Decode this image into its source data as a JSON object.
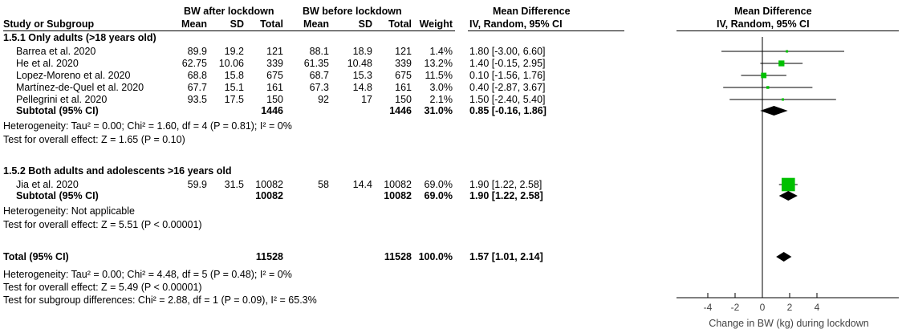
{
  "header": {
    "group_after": "BW after lockdown",
    "group_before": "BW before lockdown",
    "md_title": "Mean Difference",
    "plot_title": "Mean Difference",
    "study_col": "Study or Subgroup",
    "mean": "Mean",
    "sd": "SD",
    "total": "Total",
    "weight": "Weight",
    "md_method": "IV, Random, 95% CI",
    "plot_method": "IV, Random, 95% CI"
  },
  "subgroup1": {
    "title": "1.5.1 Only adults (>18 years old)",
    "rows": [
      {
        "study": "Barrea et al. 2020",
        "mean_a": "89.9",
        "sd_a": "19.2",
        "n_a": "121",
        "mean_b": "88.1",
        "sd_b": "18.9",
        "n_b": "121",
        "weight": "1.4%",
        "ci": "1.80 [-3.00, 6.60]"
      },
      {
        "study": "He et al. 2020",
        "mean_a": "62.75",
        "sd_a": "10.06",
        "n_a": "339",
        "mean_b": "61.35",
        "sd_b": "10.48",
        "n_b": "339",
        "weight": "13.2%",
        "ci": "1.40 [-0.15, 2.95]"
      },
      {
        "study": "Lopez-Moreno et al. 2020",
        "mean_a": "68.8",
        "sd_a": "15.8",
        "n_a": "675",
        "mean_b": "68.7",
        "sd_b": "15.3",
        "n_b": "675",
        "weight": "11.5%",
        "ci": "0.10 [-1.56, 1.76]"
      },
      {
        "study": "Martínez-de-Quel et al. 2020",
        "mean_a": "67.7",
        "sd_a": "15.1",
        "n_a": "161",
        "mean_b": "67.3",
        "sd_b": "14.8",
        "n_b": "161",
        "weight": "3.0%",
        "ci": "0.40 [-2.87, 3.67]"
      },
      {
        "study": "Pellegrini et al. 2020",
        "mean_a": "93.5",
        "sd_a": "17.5",
        "n_a": "150",
        "mean_b": "92",
        "sd_b": "17",
        "n_b": "150",
        "weight": "2.1%",
        "ci": "1.50 [-2.40, 5.40]"
      }
    ],
    "subtotal": {
      "label": "Subtotal (95% CI)",
      "n_a": "1446",
      "n_b": "1446",
      "weight": "31.0%",
      "ci": "0.85 [-0.16, 1.86]"
    },
    "heterogeneity": "Heterogeneity: Tau² = 0.00; Chi² = 1.60, df = 4 (P = 0.81); I² = 0%",
    "overall": "Test for overall effect: Z = 1.65 (P = 0.10)"
  },
  "subgroup2": {
    "title": "1.5.2 Both adults and adolescents >16 years old",
    "rows": [
      {
        "study": "Jia et al. 2020",
        "mean_a": "59.9",
        "sd_a": "31.5",
        "n_a": "10082",
        "mean_b": "58",
        "sd_b": "14.4",
        "n_b": "10082",
        "weight": "69.0%",
        "ci": "1.90 [1.22, 2.58]"
      }
    ],
    "subtotal": {
      "label": "Subtotal (95% CI)",
      "n_a": "10082",
      "n_b": "10082",
      "weight": "69.0%",
      "ci": "1.90 [1.22, 2.58]"
    },
    "heterogeneity": "Heterogeneity: Not applicable",
    "overall": "Test for overall effect: Z = 5.51 (P < 0.00001)"
  },
  "total": {
    "label": "Total (95% CI)",
    "n_a": "11528",
    "n_b": "11528",
    "weight": "100.0%",
    "ci": "1.57 [1.01, 2.14]"
  },
  "footer": {
    "heterogeneity": "Heterogeneity: Tau² = 0.00; Chi² = 4.48, df = 5 (P = 0.48); I² = 0%",
    "overall": "Test for overall effect: Z = 5.49 (P < 0.00001)",
    "subgroup_diff": "Test for subgroup differences: Chi² = 2.88, df = 1 (P = 0.09), I² = 65.3%"
  },
  "chart_data": {
    "type": "forest",
    "xlabel": "Change in BW (kg) during lockdown",
    "xlim": [
      -6,
      6
    ],
    "ticks": [
      -4,
      -2,
      0,
      2,
      4
    ],
    "tick_labels": [
      "-4",
      "-2",
      "0",
      "2",
      "4"
    ],
    "study_color": "#00c000",
    "diamond_color": "#000000",
    "studies": [
      {
        "name": "Barrea et al. 2020",
        "md": 1.8,
        "lo": -3.0,
        "hi": 6.6,
        "weight": 1.4
      },
      {
        "name": "He et al. 2020",
        "md": 1.4,
        "lo": -0.15,
        "hi": 2.95,
        "weight": 13.2
      },
      {
        "name": "Lopez-Moreno et al. 2020",
        "md": 0.1,
        "lo": -1.56,
        "hi": 1.76,
        "weight": 11.5
      },
      {
        "name": "Martínez-de-Quel et al. 2020",
        "md": 0.4,
        "lo": -2.87,
        "hi": 3.67,
        "weight": 3.0
      },
      {
        "name": "Pellegrini et al. 2020",
        "md": 1.5,
        "lo": -2.4,
        "hi": 5.4,
        "weight": 2.1
      },
      {
        "name": "Jia et al. 2020",
        "md": 1.9,
        "lo": 1.22,
        "hi": 2.58,
        "weight": 69.0
      }
    ],
    "diamonds": [
      {
        "name": "Subtotal 1.5.1",
        "md": 0.85,
        "lo": -0.16,
        "hi": 1.86
      },
      {
        "name": "Subtotal 1.5.2",
        "md": 1.9,
        "lo": 1.22,
        "hi": 2.58
      },
      {
        "name": "Total",
        "md": 1.57,
        "lo": 1.01,
        "hi": 2.14
      }
    ]
  }
}
